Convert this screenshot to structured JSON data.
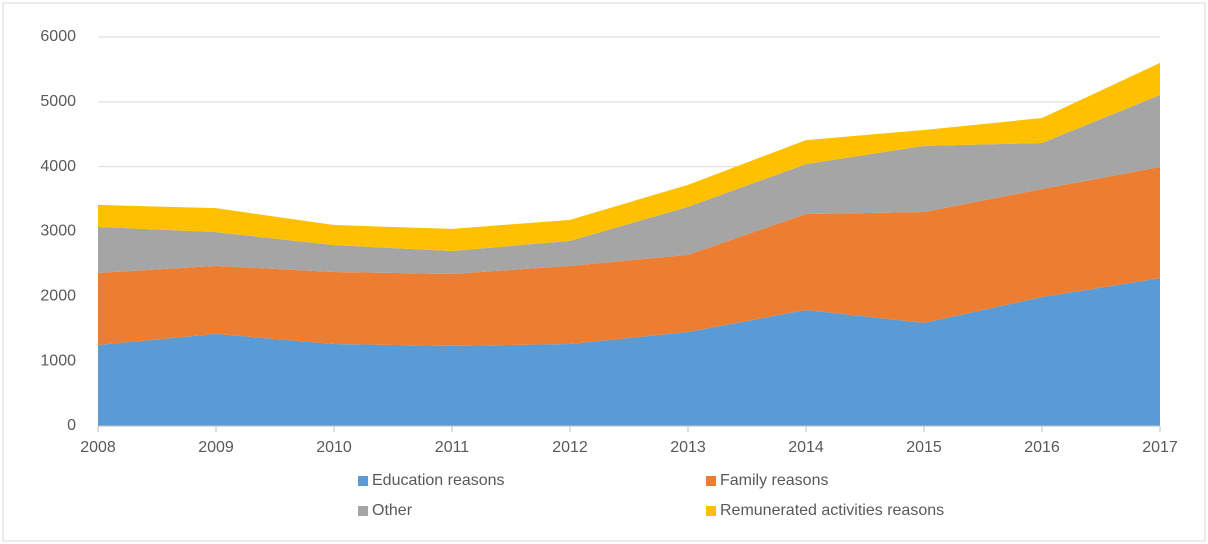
{
  "chart_data": {
    "type": "stacked_area",
    "categories": [
      "2008",
      "2009",
      "2010",
      "2011",
      "2012",
      "2013",
      "2014",
      "2015",
      "2016",
      "2017"
    ],
    "series": [
      {
        "name": "Education reasons",
        "color": "#5b9bd5",
        "values": [
          1250,
          1420,
          1265,
          1235,
          1265,
          1450,
          1790,
          1590,
          1990,
          2280
        ]
      },
      {
        "name": "Family reasons",
        "color": "#ed7d31",
        "values": [
          1110,
          1050,
          1110,
          1110,
          1205,
          1190,
          1480,
          1710,
          1665,
          1715
        ]
      },
      {
        "name": "Other",
        "color": "#a5a5a5",
        "values": [
          710,
          520,
          415,
          355,
          385,
          740,
          770,
          1020,
          710,
          1110
        ]
      },
      {
        "name": "Remunerated activities reasons",
        "color": "#ffc000",
        "values": [
          340,
          370,
          310,
          340,
          325,
          340,
          370,
          245,
          385,
          495
        ]
      }
    ],
    "ylim": [
      0,
      6000
    ],
    "yticks": [
      0,
      1000,
      2000,
      3000,
      4000,
      5000,
      6000
    ],
    "grid": true
  }
}
